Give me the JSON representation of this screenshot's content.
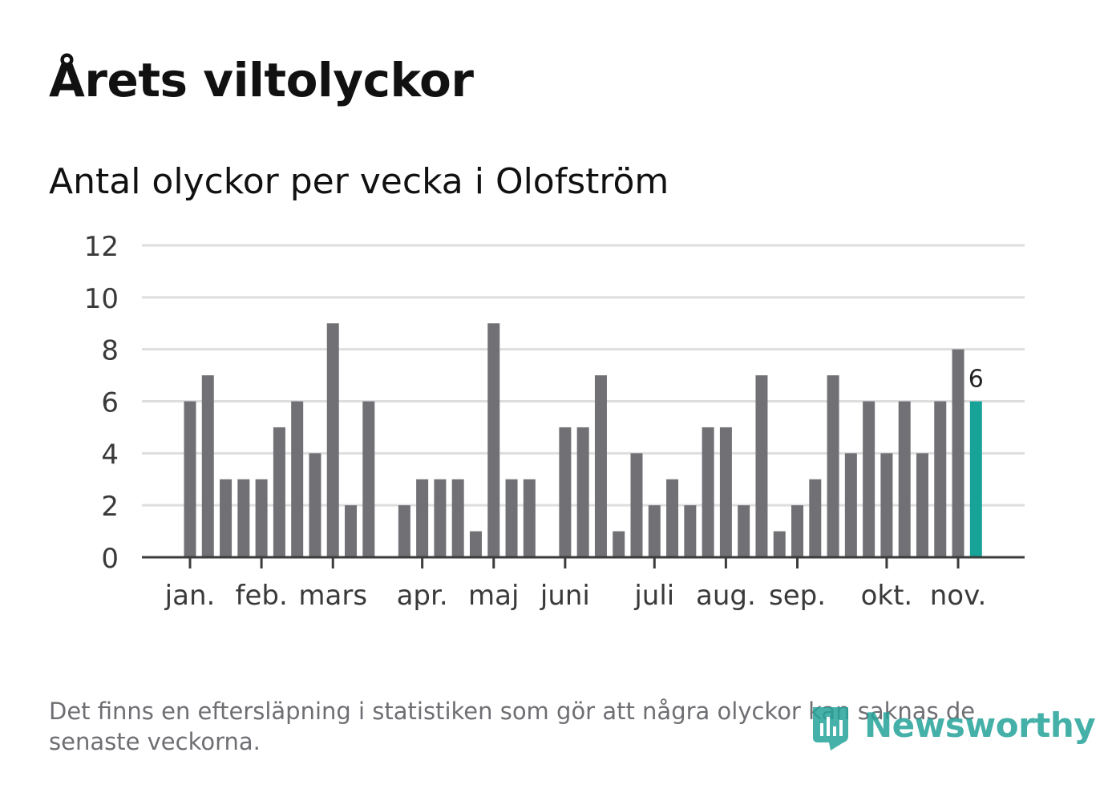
{
  "title": "Årets viltolyckor",
  "subtitle": "Antal olyckor per vecka i Olofström",
  "footnote": "Det finns en eftersläpning i statistiken som gör att några olyckor kan saknas de senaste veckorna.",
  "brand": {
    "name": "Newsworthy",
    "icon": "newsworthy-logo-icon",
    "color": "#24a39a"
  },
  "colors": {
    "bar": "#717075",
    "highlight": "#18a398",
    "grid": "#dedede",
    "axis": "#3c3c3c"
  },
  "chart_data": {
    "type": "bar",
    "title": "Antal olyckor per vecka i Olofström",
    "xlabel": "",
    "ylabel": "",
    "ylim": [
      0,
      12
    ],
    "yticks": [
      0,
      2,
      4,
      6,
      8,
      10,
      12
    ],
    "grid": true,
    "week_range": [
      1,
      48
    ],
    "series": [
      {
        "name": "Antal olyckor",
        "values": [
          6,
          7,
          3,
          3,
          3,
          5,
          6,
          4,
          9,
          2,
          6,
          0,
          2,
          3,
          3,
          3,
          1,
          9,
          3,
          3,
          0,
          5,
          5,
          7,
          1,
          4,
          2,
          3,
          2,
          5,
          5,
          2,
          7,
          1,
          2,
          3,
          7,
          4,
          6,
          4,
          6,
          4,
          6,
          8,
          6
        ]
      }
    ],
    "highlight": {
      "index": 44,
      "label": "6"
    },
    "month_labels": [
      {
        "label": "jan.",
        "week": 1
      },
      {
        "label": "feb.",
        "week": 5
      },
      {
        "label": "mars",
        "week": 9
      },
      {
        "label": "apr.",
        "week": 14
      },
      {
        "label": "maj",
        "week": 18
      },
      {
        "label": "juni",
        "week": 22
      },
      {
        "label": "juli",
        "week": 27
      },
      {
        "label": "aug.",
        "week": 31
      },
      {
        "label": "sep.",
        "week": 35
      },
      {
        "label": "okt.",
        "week": 40
      },
      {
        "label": "nov.",
        "week": 44
      }
    ]
  }
}
